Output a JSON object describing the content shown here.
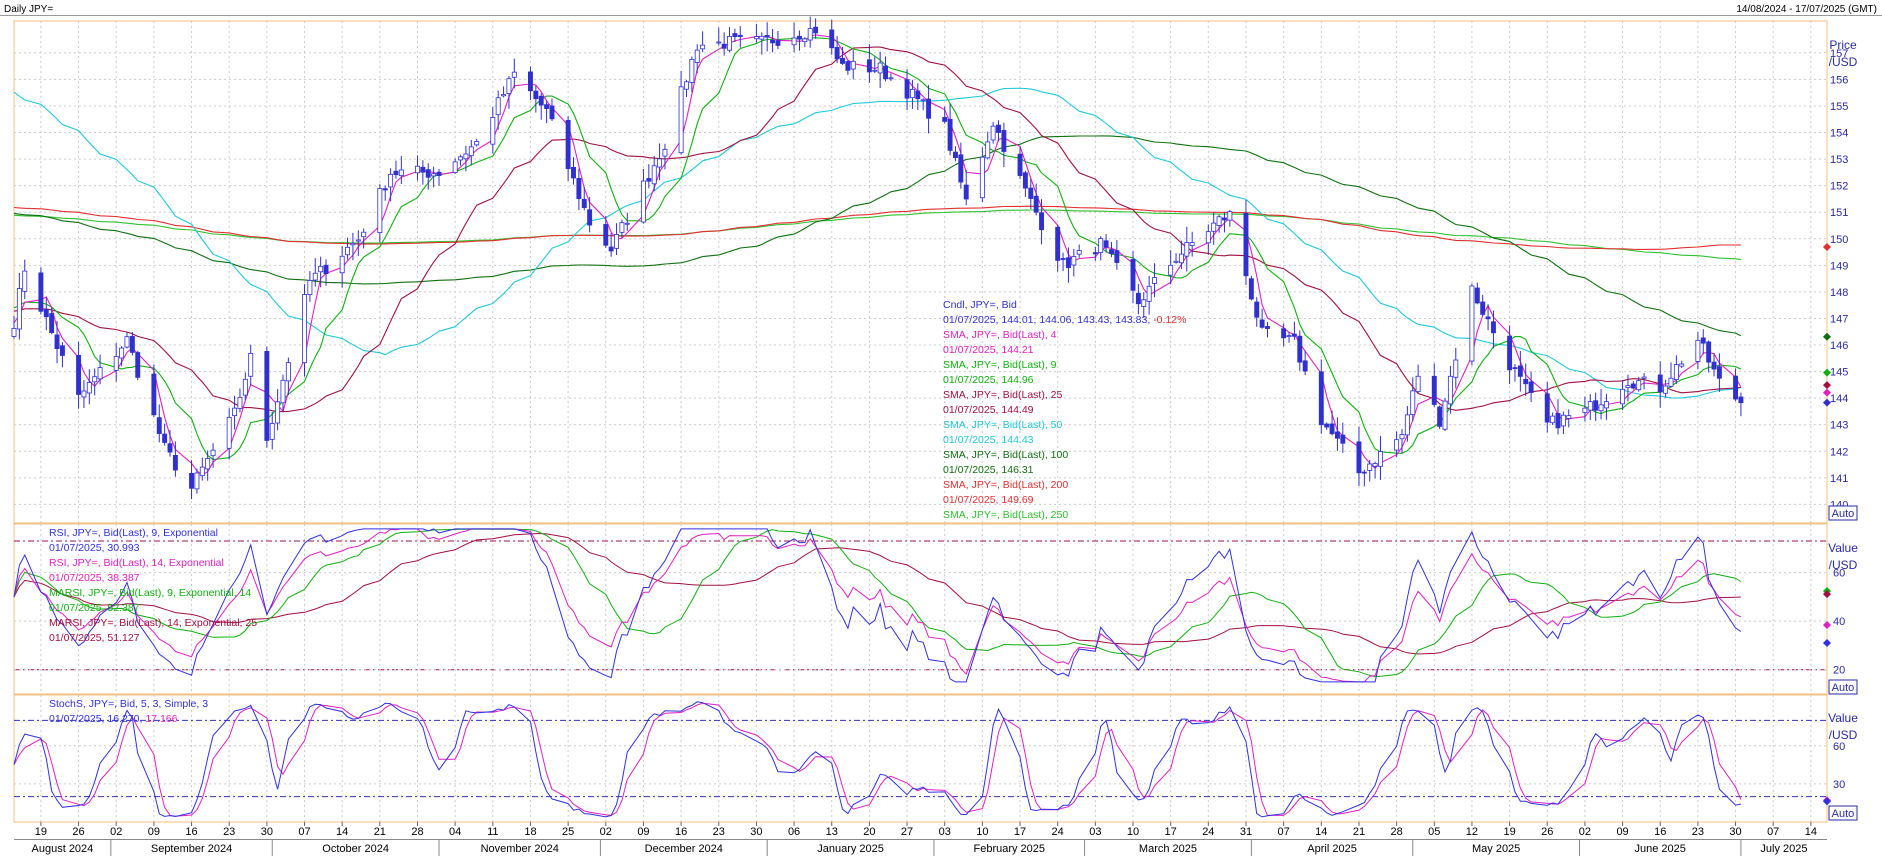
{
  "header": {
    "title": "Daily JPY=",
    "date_range": "14/08/2024 - 17/07/2025 (GMT)"
  },
  "colors": {
    "candle": "#3030d0",
    "sma4": "#e020c0",
    "sma9": "#10b010",
    "sma25": "#a01040",
    "sma50": "#20c8d8",
    "sma100": "#107010",
    "sma200": "#e03030",
    "sma250": "#30c030",
    "rsi9": "#3030e0",
    "rsi14": "#e020c0",
    "marsi9": "#10b010",
    "marsi14": "#a01040",
    "stoch_k": "#3030e0",
    "stoch_d": "#e020c0",
    "grid": "#cccccc",
    "panel_border": "#f0c080",
    "reference_line": "#a01050"
  },
  "price_panel": {
    "axis_title": [
      "Price",
      "/USD"
    ],
    "auto_label": "Auto",
    "legend": [
      {
        "text": "Cndl, JPY=, Bid",
        "color": "#3030d0"
      },
      {
        "text": "01/07/2025, 144.01, 144.06, 143.43, 143.83, ",
        "color": "#3030d0",
        "tail": "-0.12%",
        "tail_color": "#e03030"
      },
      {
        "text": "SMA, JPY=, Bid(Last),  4",
        "color": "#e020c0"
      },
      {
        "text": "01/07/2025, 144.21",
        "color": "#e020c0"
      },
      {
        "text": "SMA, JPY=, Bid(Last),  9",
        "color": "#10b010"
      },
      {
        "text": "01/07/2025, 144.96",
        "color": "#10b010"
      },
      {
        "text": "SMA, JPY=, Bid(Last),  25",
        "color": "#a01040"
      },
      {
        "text": "01/07/2025, 144.49",
        "color": "#a01040"
      },
      {
        "text": "SMA, JPY=, Bid(Last),  50",
        "color": "#20c8d8"
      },
      {
        "text": "01/07/2025, 144.43",
        "color": "#20c8d8"
      },
      {
        "text": "SMA, JPY=, Bid(Last),  100",
        "color": "#107010"
      },
      {
        "text": "01/07/2025, 146.31",
        "color": "#107010"
      },
      {
        "text": "SMA, JPY=, Bid(Last),  200",
        "color": "#e03030"
      },
      {
        "text": "01/07/2025, 149.69",
        "color": "#e03030"
      },
      {
        "text": "SMA, JPY=, Bid(Last),  250",
        "color": "#30c030"
      }
    ]
  },
  "rsi_panel": {
    "axis_title": [
      "Value",
      "/USD"
    ],
    "auto_label": "Auto",
    "legend": [
      {
        "text": "RSI, JPY=, Bid(Last),  9, Exponential",
        "color": "#3030e0"
      },
      {
        "text": "01/07/2025, 30.993",
        "color": "#3030e0"
      },
      {
        "text": "RSI, JPY=, Bid(Last),  14, Exponential",
        "color": "#e020c0"
      },
      {
        "text": "01/07/2025, 38.387",
        "color": "#e020c0"
      },
      {
        "text": "MARSI, JPY=, Bid(Last),  9, Exponential, 14",
        "color": "#10b010"
      },
      {
        "text": "01/07/2025, 52.387",
        "color": "#10b010"
      },
      {
        "text": "MARSI, JPY=, Bid(Last),  14, Exponential, 25",
        "color": "#a01040"
      },
      {
        "text": "01/07/2025, 51.127",
        "color": "#a01040"
      }
    ]
  },
  "stoch_panel": {
    "axis_title": [
      "Value",
      "/USD"
    ],
    "auto_label": "Auto",
    "legend": [
      {
        "text": "StochS, JPY=, Bid,  5, 3, Simple, 3",
        "color": "#3030e0"
      },
      {
        "text": "01/07/2025, 16.270, ",
        "color": "#3030e0",
        "tail": "17.166",
        "tail_color": "#e020c0"
      }
    ]
  },
  "x_axis": {
    "day_ticks": [
      "19",
      "26",
      "02",
      "09",
      "16",
      "23",
      "30",
      "07",
      "14",
      "21",
      "28",
      "04",
      "11",
      "18",
      "25",
      "02",
      "09",
      "16",
      "23",
      "30",
      "06",
      "13",
      "20",
      "27",
      "03",
      "10",
      "17",
      "24",
      "03",
      "10",
      "17",
      "24",
      "31",
      "07",
      "14",
      "21",
      "28",
      "05",
      "12",
      "19",
      "26",
      "02",
      "09",
      "16",
      "23",
      "30",
      "07",
      "14"
    ],
    "months": [
      "August 2024",
      "September 2024",
      "October 2024",
      "November 2024",
      "December 2024",
      "January 2025",
      "February 2025",
      "March 2025",
      "April 2025",
      "May 2025",
      "June 2025",
      "July 2025"
    ]
  },
  "chart_data": [
    {
      "type": "candlestick",
      "title": "Daily JPY=",
      "ylabel": "Price /USD",
      "ylim": [
        139.3,
        158.2
      ],
      "yticks": [
        140,
        141,
        142,
        143,
        144,
        145,
        146,
        147,
        148,
        149,
        150,
        151,
        152,
        153,
        154,
        155,
        156,
        157
      ],
      "grid": true,
      "x_range": [
        "2024-08-14",
        "2025-07-17"
      ],
      "key_points": [
        {
          "date": "2024-08-14",
          "close": 146.9
        },
        {
          "date": "2024-08-16",
          "close": 148.9
        },
        {
          "date": "2024-08-26",
          "close": 144.0
        },
        {
          "date": "2024-09-04",
          "close": 146.2
        },
        {
          "date": "2024-09-11",
          "close": 142.1
        },
        {
          "date": "2024-09-16",
          "close": 140.6
        },
        {
          "date": "2024-09-24",
          "close": 143.4
        },
        {
          "date": "2024-09-27",
          "close": 145.5
        },
        {
          "date": "2024-09-30",
          "close": 142.5
        },
        {
          "date": "2024-10-08",
          "close": 148.4
        },
        {
          "date": "2024-10-17",
          "close": 150.0
        },
        {
          "date": "2024-10-23",
          "close": 152.5
        },
        {
          "date": "2024-11-01",
          "close": 152.5
        },
        {
          "date": "2024-11-08",
          "close": 153.6
        },
        {
          "date": "2024-11-15",
          "close": 156.2
        },
        {
          "date": "2024-11-21",
          "close": 154.8
        },
        {
          "date": "2024-11-29",
          "close": 150.6
        },
        {
          "date": "2024-12-03",
          "close": 149.6
        },
        {
          "date": "2024-12-13",
          "close": 153.6
        },
        {
          "date": "2024-12-19",
          "close": 157.3
        },
        {
          "date": "2024-12-26",
          "close": 157.4
        },
        {
          "date": "2024-12-31",
          "close": 157.4
        },
        {
          "date": "2025-01-10",
          "close": 157.9
        },
        {
          "date": "2025-01-15",
          "close": 156.5
        },
        {
          "date": "2025-01-22",
          "close": 156.4
        },
        {
          "date": "2025-01-28",
          "close": 155.4
        },
        {
          "date": "2025-02-03",
          "close": 154.2
        },
        {
          "date": "2025-02-07",
          "close": 151.4
        },
        {
          "date": "2025-02-12",
          "close": 154.4
        },
        {
          "date": "2025-02-18",
          "close": 151.8
        },
        {
          "date": "2025-02-25",
          "close": 149.0
        },
        {
          "date": "2025-03-04",
          "close": 149.8
        },
        {
          "date": "2025-03-11",
          "close": 147.6
        },
        {
          "date": "2025-03-18",
          "close": 149.3
        },
        {
          "date": "2025-03-26",
          "close": 150.7
        },
        {
          "date": "2025-03-28",
          "close": 150.9
        },
        {
          "date": "2025-04-03",
          "close": 146.4
        },
        {
          "date": "2025-04-09",
          "close": 146.1
        },
        {
          "date": "2025-04-14",
          "close": 143.2
        },
        {
          "date": "2025-04-21",
          "close": 141.2
        },
        {
          "date": "2025-04-29",
          "close": 142.6
        },
        {
          "date": "2025-05-02",
          "close": 144.9
        },
        {
          "date": "2025-05-06",
          "close": 143.2
        },
        {
          "date": "2025-05-09",
          "close": 145.6
        },
        {
          "date": "2025-05-12",
          "close": 148.1
        },
        {
          "date": "2025-05-19",
          "close": 145.3
        },
        {
          "date": "2025-05-26",
          "close": 143.0
        },
        {
          "date": "2025-06-02",
          "close": 143.5
        },
        {
          "date": "2025-06-10",
          "close": 144.7
        },
        {
          "date": "2025-06-16",
          "close": 144.4
        },
        {
          "date": "2025-06-23",
          "close": 146.2
        },
        {
          "date": "2025-06-27",
          "close": 144.6
        },
        {
          "date": "2025-07-01",
          "close": 143.83
        }
      ],
      "series": [
        {
          "name": "SMA 4",
          "last": 144.21
        },
        {
          "name": "SMA 9",
          "last": 144.96
        },
        {
          "name": "SMA 25",
          "last": 144.49
        },
        {
          "name": "SMA 50",
          "last": 144.43
        },
        {
          "name": "SMA 100",
          "last": 146.31
        },
        {
          "name": "SMA 200",
          "last": 149.69
        },
        {
          "name": "SMA 250"
        }
      ]
    },
    {
      "type": "line",
      "ylabel": "Value /USD",
      "ylim": [
        10,
        80
      ],
      "yticks": [
        20,
        40,
        60
      ],
      "reference_lines": [
        20,
        73
      ],
      "series": [
        {
          "name": "RSI 9",
          "last": 30.993
        },
        {
          "name": "RSI 14",
          "last": 38.387
        },
        {
          "name": "MARSI 9",
          "last": 52.387
        },
        {
          "name": "MARSI 14",
          "last": 51.127
        }
      ]
    },
    {
      "type": "line",
      "ylabel": "Value /USD",
      "ylim": [
        0,
        100
      ],
      "yticks": [
        30,
        60
      ],
      "reference_lines": [
        20,
        80
      ],
      "series": [
        {
          "name": "StochS 5,3",
          "last": 16.27
        },
        {
          "name": "Signal",
          "last": 17.166
        }
      ]
    }
  ]
}
